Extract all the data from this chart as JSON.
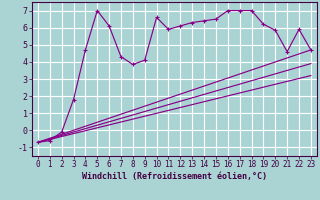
{
  "xlabel": "Windchill (Refroidissement éolien,°C)",
  "bg_color": "#aad4d4",
  "grid_color": "#ffffff",
  "line_color": "#880088",
  "spine_color": "#440044",
  "xlim": [
    -0.5,
    23.5
  ],
  "ylim": [
    -1.5,
    7.5
  ],
  "xticks": [
    0,
    1,
    2,
    3,
    4,
    5,
    6,
    7,
    8,
    9,
    10,
    11,
    12,
    13,
    14,
    15,
    16,
    17,
    18,
    19,
    20,
    21,
    22,
    23
  ],
  "yticks": [
    -1,
    0,
    1,
    2,
    3,
    4,
    5,
    6,
    7
  ],
  "series1_x": [
    0,
    1,
    2,
    3,
    4,
    5,
    6,
    7,
    8,
    9,
    10,
    11,
    12,
    13,
    14,
    15,
    16,
    17,
    18,
    19,
    20,
    21,
    22,
    23
  ],
  "series1_y": [
    -0.7,
    -0.6,
    -0.1,
    1.8,
    4.7,
    7.0,
    6.1,
    4.3,
    3.85,
    4.1,
    6.6,
    5.9,
    6.1,
    6.3,
    6.4,
    6.5,
    7.0,
    7.0,
    7.0,
    6.2,
    5.85,
    4.6,
    5.9,
    4.7
  ],
  "straight_lines": [
    {
      "x0": 0,
      "y0": -0.7,
      "x1": 23,
      "y1": 4.7,
      "ls": "-"
    },
    {
      "x0": 0,
      "y0": -0.7,
      "x1": 23,
      "y1": 3.9,
      "ls": "-"
    },
    {
      "x0": 0,
      "y0": -0.7,
      "x1": 23,
      "y1": 3.2,
      "ls": "-"
    }
  ],
  "xlabel_fontsize": 6,
  "tick_fontsize": 5.5,
  "ytick_fontsize": 6
}
